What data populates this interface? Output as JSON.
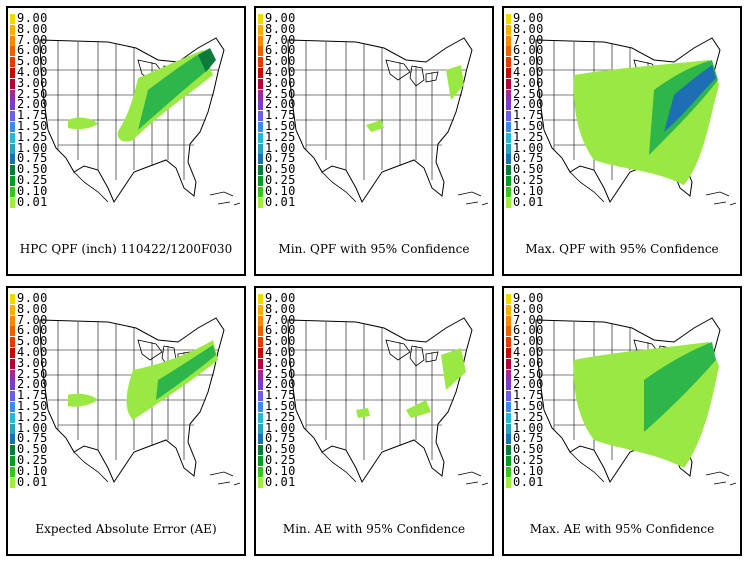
{
  "legend": {
    "labels": [
      "9.00",
      "8.00",
      "7.00",
      "6.00",
      "5.00",
      "4.00",
      "3.00",
      "2.50",
      "2.00",
      "1.75",
      "1.50",
      "1.25",
      "1.00",
      "0.75",
      "0.50",
      "0.25",
      "0.10",
      "0.01"
    ],
    "colors": [
      "#f6d800",
      "#f2b200",
      "#ee8e00",
      "#e86200",
      "#e23a00",
      "#d00000",
      "#b3003a",
      "#9a2c9a",
      "#7a3cc8",
      "#6a60e0",
      "#3a8ce6",
      "#2ab6d6",
      "#30a0c0",
      "#1e6eb4",
      "#0e7a3a",
      "#0b9a22",
      "#40c020",
      "#a0ec40"
    ]
  },
  "panels": [
    {
      "caption": "HPC QPF (inch) 110422/1200F030"
    },
    {
      "caption": "Min. QPF with 95% Confidence"
    },
    {
      "caption": "Max. QPF with 95% Confidence"
    },
    {
      "caption": "Expected Absolute Error (AE)"
    },
    {
      "caption": "Min. AE with 95% Confidence"
    },
    {
      "caption": "Max. AE with 95% Confidence"
    }
  ]
}
